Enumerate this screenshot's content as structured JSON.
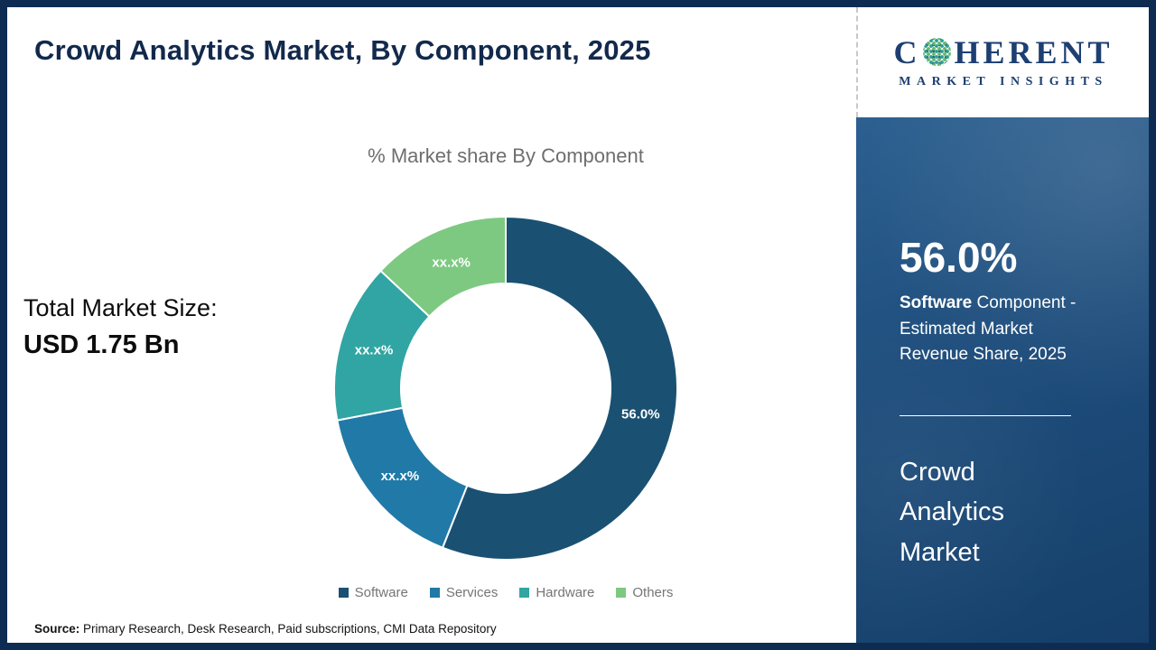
{
  "header": {
    "title": "Crowd Analytics Market, By Component, 2025"
  },
  "logo": {
    "word_start": "C",
    "word_end": "HERENT",
    "subtitle": "MARKET INSIGHTS"
  },
  "stats": {
    "total_label": "Total Market Size:",
    "total_value": "USD 1.75 Bn"
  },
  "chart_data": {
    "type": "pie",
    "donut": true,
    "title": "% Market share By Component",
    "categories": [
      "Software",
      "Services",
      "Hardware",
      "Others"
    ],
    "values": [
      56.0,
      16.0,
      15.0,
      13.0
    ],
    "slice_labels": [
      "56.0%",
      "xx.x%",
      "xx.x%",
      "xx.x%"
    ],
    "colors": [
      "#1a5173",
      "#2179a7",
      "#31a5a3",
      "#7dc981"
    ],
    "legend_position": "bottom",
    "start_angle_deg": 0
  },
  "sidebar": {
    "stat_value": "56.0%",
    "desc_bold": "Software",
    "desc_rest": " Component - Estimated Market Revenue Share, 2025",
    "market_name": "Crowd Analytics Market"
  },
  "footer": {
    "source_label": "Source:",
    "source_text": " Primary Research, Desk Research, Paid subscriptions, CMI Data Repository"
  }
}
